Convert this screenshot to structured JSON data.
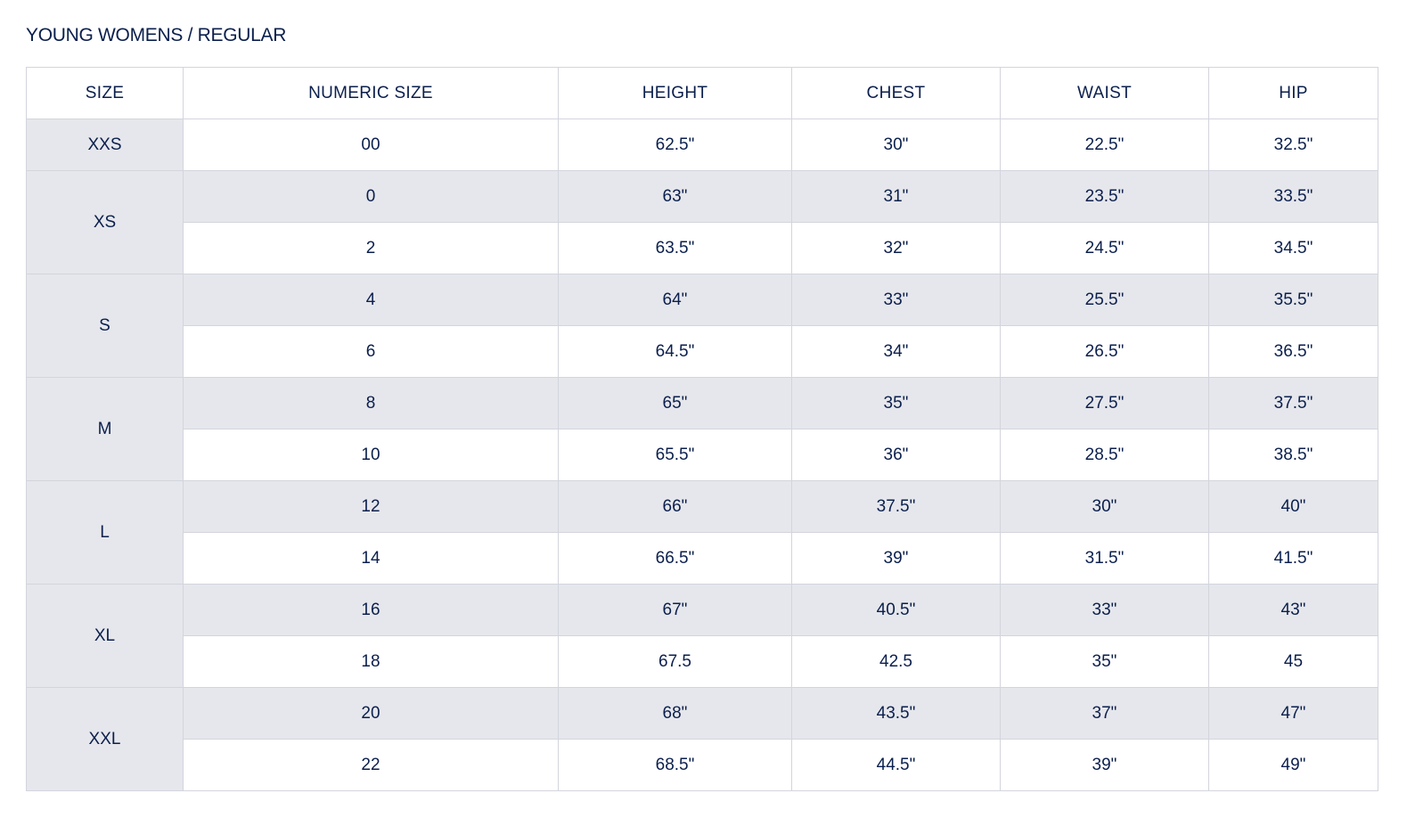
{
  "title": "YOUNG WOMENS / REGULAR",
  "columns": [
    "SIZE",
    "NUMERIC SIZE",
    "HEIGHT",
    "CHEST",
    "WAIST",
    "HIP"
  ],
  "groups": [
    {
      "size": "XXS",
      "rows": [
        {
          "numeric": "00",
          "height": "62.5\"",
          "chest": "30\"",
          "waist": "22.5\"",
          "hip": "32.5\""
        }
      ]
    },
    {
      "size": "XS",
      "rows": [
        {
          "numeric": "0",
          "height": "63\"",
          "chest": "31\"",
          "waist": "23.5\"",
          "hip": "33.5\""
        },
        {
          "numeric": "2",
          "height": "63.5\"",
          "chest": "32\"",
          "waist": "24.5\"",
          "hip": "34.5\""
        }
      ]
    },
    {
      "size": "S",
      "rows": [
        {
          "numeric": "4",
          "height": "64\"",
          "chest": "33\"",
          "waist": "25.5\"",
          "hip": "35.5\""
        },
        {
          "numeric": "6",
          "height": "64.5\"",
          "chest": "34\"",
          "waist": "26.5\"",
          "hip": "36.5\""
        }
      ]
    },
    {
      "size": "M",
      "rows": [
        {
          "numeric": "8",
          "height": "65\"",
          "chest": "35\"",
          "waist": "27.5\"",
          "hip": "37.5\""
        },
        {
          "numeric": "10",
          "height": "65.5\"",
          "chest": "36\"",
          "waist": "28.5\"",
          "hip": "38.5\""
        }
      ]
    },
    {
      "size": "L",
      "rows": [
        {
          "numeric": "12",
          "height": "66\"",
          "chest": "37.5\"",
          "waist": "30\"",
          "hip": "40\""
        },
        {
          "numeric": "14",
          "height": "66.5\"",
          "chest": "39\"",
          "waist": "31.5\"",
          "hip": "41.5\""
        }
      ]
    },
    {
      "size": "XL",
      "rows": [
        {
          "numeric": "16",
          "height": "67\"",
          "chest": "40.5\"",
          "waist": "33\"",
          "hip": "43\""
        },
        {
          "numeric": "18",
          "height": "67.5",
          "chest": "42.5",
          "waist": "35\"",
          "hip": "45"
        }
      ]
    },
    {
      "size": "XXL",
      "rows": [
        {
          "numeric": "20",
          "height": "68\"",
          "chest": "43.5\"",
          "waist": "37\"",
          "hip": "47\""
        },
        {
          "numeric": "22",
          "height": "68.5\"",
          "chest": "44.5\"",
          "waist": "39\"",
          "hip": "49\""
        }
      ]
    }
  ],
  "colors": {
    "text": "#0b1f4d",
    "shade": "#e6e7ec",
    "border": "#d3d5dd"
  }
}
